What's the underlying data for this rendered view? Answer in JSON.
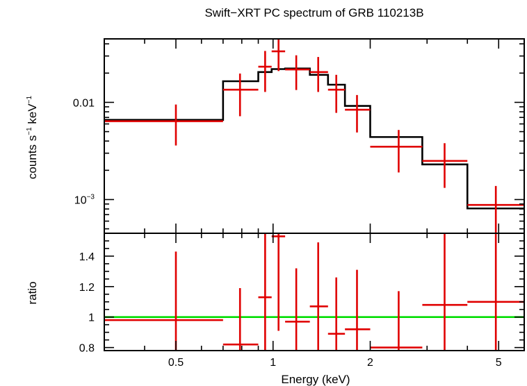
{
  "chart_data": {
    "type": "scatter",
    "title": "Swift−XRT PC spectrum of GRB 110213B",
    "xlabel": "Energy (keV)",
    "xscale": "log",
    "xlim": [
      0.3,
      6.0
    ],
    "xticks": [
      {
        "value": 0.5,
        "label": "0.5"
      },
      {
        "value": 1,
        "label": "1"
      },
      {
        "value": 2,
        "label": "2"
      },
      {
        "value": 5,
        "label": "5"
      }
    ],
    "top_panel": {
      "ylabel_parts": [
        "counts s",
        "−1",
        " keV",
        "−1"
      ],
      "yscale": "log",
      "ylim": [
        0.00045,
        0.045
      ],
      "yticks": [
        {
          "value": 0.01,
          "label": "0.01"
        },
        {
          "value": 0.001,
          "label_base": "10",
          "label_exp": "−3"
        }
      ],
      "data": [
        {
          "x": 0.5,
          "xlo": 0.3,
          "xhi": 0.7,
          "y": 0.0064,
          "ylo": 0.0036,
          "yhi": 0.0095
        },
        {
          "x": 0.79,
          "xlo": 0.7,
          "xhi": 0.9,
          "y": 0.0135,
          "ylo": 0.0072,
          "yhi": 0.0198
        },
        {
          "x": 0.945,
          "xlo": 0.9,
          "xhi": 0.99,
          "y": 0.0233,
          "ylo": 0.0128,
          "yhi": 0.0338
        },
        {
          "x": 1.04,
          "xlo": 0.99,
          "xhi": 1.09,
          "y": 0.0335,
          "ylo": 0.021,
          "yhi": 0.047
        },
        {
          "x": 1.18,
          "xlo": 1.09,
          "xhi": 1.3,
          "y": 0.0218,
          "ylo": 0.0134,
          "yhi": 0.0305
        },
        {
          "x": 1.38,
          "xlo": 1.3,
          "xhi": 1.48,
          "y": 0.0205,
          "ylo": 0.0128,
          "yhi": 0.0293
        },
        {
          "x": 1.57,
          "xlo": 1.48,
          "xhi": 1.67,
          "y": 0.0135,
          "ylo": 0.0078,
          "yhi": 0.0192
        },
        {
          "x": 1.82,
          "xlo": 1.67,
          "xhi": 2.0,
          "y": 0.0084,
          "ylo": 0.0049,
          "yhi": 0.0119
        },
        {
          "x": 2.45,
          "xlo": 2.0,
          "xhi": 2.9,
          "y": 0.0035,
          "ylo": 0.0019,
          "yhi": 0.0052
        },
        {
          "x": 3.4,
          "xlo": 2.9,
          "xhi": 4.0,
          "y": 0.0025,
          "ylo": 0.00132,
          "yhi": 0.0038
        },
        {
          "x": 4.9,
          "xlo": 4.0,
          "xhi": 6.0,
          "y": 0.00088,
          "ylo": 0.00045,
          "yhi": 0.00138
        }
      ],
      "model_steps": [
        {
          "xlo": 0.3,
          "xhi": 0.7,
          "y": 0.0066
        },
        {
          "xlo": 0.7,
          "xhi": 0.9,
          "y": 0.0165
        },
        {
          "xlo": 0.9,
          "xhi": 0.99,
          "y": 0.0205
        },
        {
          "xlo": 0.99,
          "xhi": 1.09,
          "y": 0.022
        },
        {
          "xlo": 1.09,
          "xhi": 1.3,
          "y": 0.0223
        },
        {
          "xlo": 1.3,
          "xhi": 1.48,
          "y": 0.0192
        },
        {
          "xlo": 1.48,
          "xhi": 1.67,
          "y": 0.0152
        },
        {
          "xlo": 1.67,
          "xhi": 2.0,
          "y": 0.0092
        },
        {
          "xlo": 2.0,
          "xhi": 2.9,
          "y": 0.0044
        },
        {
          "xlo": 2.9,
          "xhi": 4.0,
          "y": 0.0023
        },
        {
          "xlo": 4.0,
          "xhi": 6.0,
          "y": 0.00081
        }
      ]
    },
    "bottom_panel": {
      "ylabel": "ratio",
      "yscale": "linear",
      "ylim": [
        0.78,
        1.55
      ],
      "yticks": [
        {
          "value": 0.8,
          "label": "0.8"
        },
        {
          "value": 1,
          "label": "1"
        },
        {
          "value": 1.2,
          "label": "1.2"
        },
        {
          "value": 1.4,
          "label": "1.4"
        }
      ],
      "reference_line": 1.0,
      "data": [
        {
          "x": 0.5,
          "xlo": 0.3,
          "xhi": 0.7,
          "y": 0.98,
          "ylo": 0.53,
          "yhi": 1.43
        },
        {
          "x": 0.79,
          "xlo": 0.7,
          "xhi": 0.9,
          "y": 0.82,
          "ylo": 0.45,
          "yhi": 1.19
        },
        {
          "x": 0.945,
          "xlo": 0.9,
          "xhi": 0.99,
          "y": 1.13,
          "ylo": 0.62,
          "yhi": 1.64
        },
        {
          "x": 1.04,
          "xlo": 0.99,
          "xhi": 1.09,
          "y": 1.53,
          "ylo": 0.91,
          "yhi": 2.1
        },
        {
          "x": 1.18,
          "xlo": 1.09,
          "xhi": 1.3,
          "y": 0.97,
          "ylo": 0.61,
          "yhi": 1.32
        },
        {
          "x": 1.38,
          "xlo": 1.3,
          "xhi": 1.48,
          "y": 1.07,
          "ylo": 0.66,
          "yhi": 1.49
        },
        {
          "x": 1.57,
          "xlo": 1.48,
          "xhi": 1.67,
          "y": 0.89,
          "ylo": 0.52,
          "yhi": 1.26
        },
        {
          "x": 1.82,
          "xlo": 1.67,
          "xhi": 2.0,
          "y": 0.92,
          "ylo": 0.53,
          "yhi": 1.31
        },
        {
          "x": 2.45,
          "xlo": 2.0,
          "xhi": 2.9,
          "y": 0.8,
          "ylo": 0.44,
          "yhi": 1.17
        },
        {
          "x": 3.4,
          "xlo": 2.9,
          "xhi": 4.0,
          "y": 1.08,
          "ylo": 0.57,
          "yhi": 1.6
        },
        {
          "x": 4.9,
          "xlo": 4.0,
          "xhi": 6.0,
          "y": 1.1,
          "ylo": 0.56,
          "yhi": 1.66
        }
      ]
    }
  },
  "colors": {
    "data": "#e00000",
    "model": "#000000",
    "reference": "#00dd00",
    "frame": "#000000"
  }
}
